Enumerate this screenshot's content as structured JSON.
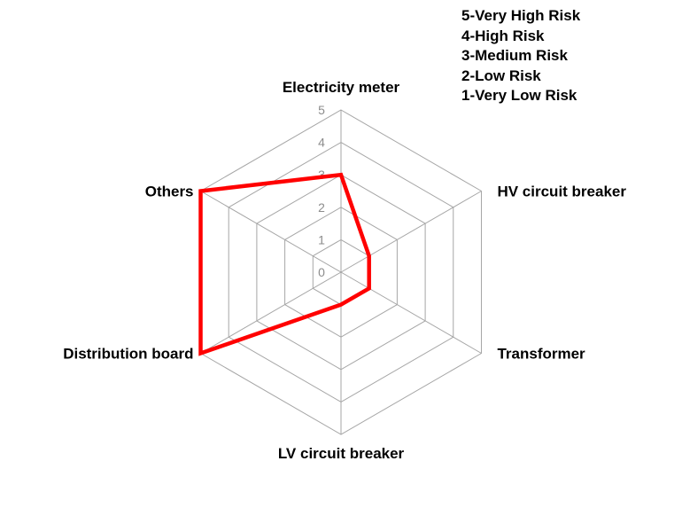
{
  "chart_data": {
    "type": "radar",
    "axes": [
      "Electricity meter",
      "HV circuit breaker",
      "Transformer",
      "LV circuit breaker",
      "Distribution board",
      "Others"
    ],
    "series": [
      {
        "values": [
          3,
          1,
          1,
          1,
          5,
          5
        ],
        "color": "#ff0000"
      }
    ],
    "rlim": [
      0,
      5
    ],
    "ticks": [
      "0",
      "1",
      "2",
      "3",
      "4",
      "5"
    ],
    "grid": true,
    "grid_color": "#a6a6a6"
  },
  "legend_notes": [
    "5-Very High Risk",
    "4-High Risk",
    "3-Medium Risk",
    "2-Low Risk",
    "1-Very Low Risk"
  ]
}
